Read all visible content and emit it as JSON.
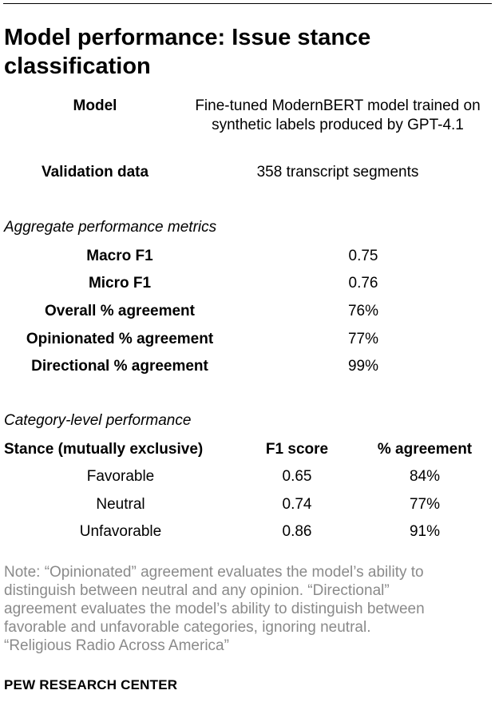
{
  "title": "Model performance: Issue stance classification",
  "model_info": {
    "model_label": "Model",
    "model_value": "Fine-tuned ModernBERT model trained on synthetic labels produced by GPT-4.1",
    "validation_label": "Validation data",
    "validation_value": "358 transcript segments"
  },
  "aggregate": {
    "heading": "Aggregate performance metrics",
    "rows": [
      {
        "label": "Macro F1",
        "value": "0.75"
      },
      {
        "label": "Micro F1",
        "value": "0.76"
      },
      {
        "label": "Overall % agreement",
        "value": "76%"
      },
      {
        "label": "Opinionated % agreement",
        "value": "77%"
      },
      {
        "label": "Directional % agreement",
        "value": "99%"
      }
    ]
  },
  "category": {
    "heading": "Category-level performance",
    "columns": [
      "Stance (mutually exclusive)",
      "F1 score",
      "% agreement"
    ],
    "rows": [
      {
        "stance": "Favorable",
        "f1": "0.65",
        "agreement": "84%"
      },
      {
        "stance": "Neutral",
        "f1": "0.74",
        "agreement": "77%"
      },
      {
        "stance": "Unfavorable",
        "f1": "0.86",
        "agreement": "91%"
      }
    ]
  },
  "note": {
    "lines": [
      "Note: “Opinionated” agreement evaluates the model’s ability to",
      "distinguish between neutral and any opinion. “Directional”",
      "agreement evaluates the model’s ability to distinguish between",
      "favorable and unfavorable categories, ignoring neutral.",
      "“Religious Radio Across America”"
    ]
  },
  "source": "PEW RESEARCH CENTER"
}
